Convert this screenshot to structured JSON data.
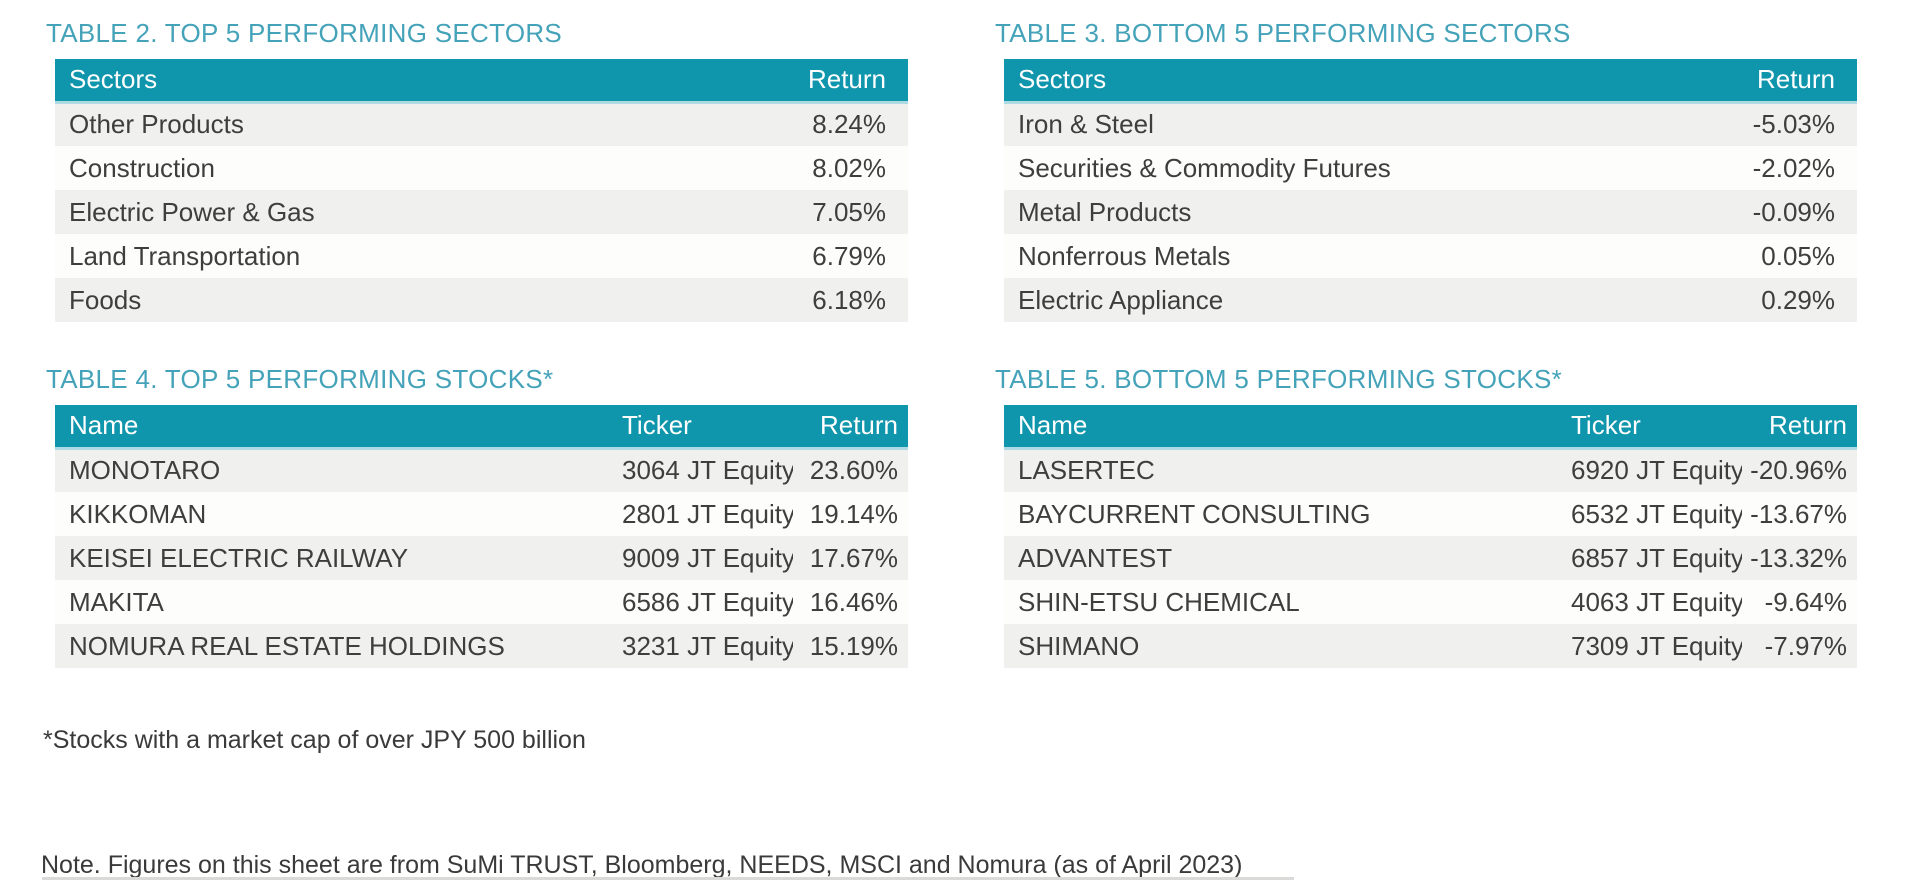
{
  "colors": {
    "header_bar_teal": "#0F95AC",
    "title_teal": "#44A2B9",
    "body_text": "#3E3E3E",
    "row_alt_gray": "#F0F0EE",
    "row_base_white": "#FDFDFC",
    "divider_gray": "#DADAD9"
  },
  "tables": {
    "sectors_top": {
      "title": "TABLE 2. TOP 5 PERFORMING SECTORS",
      "columns": [
        "Sectors",
        "Return"
      ],
      "rows": [
        {
          "sector": "Other Products",
          "return": "8.24%"
        },
        {
          "sector": "Construction",
          "return": "8.02%"
        },
        {
          "sector": "Electric Power & Gas",
          "return": "7.05%"
        },
        {
          "sector": "Land Transportation",
          "return": "6.79%"
        },
        {
          "sector": "Foods",
          "return": "6.18%"
        }
      ]
    },
    "sectors_bottom": {
      "title": "TABLE 3. BOTTOM 5 PERFORMING SECTORS",
      "columns": [
        "Sectors",
        "Return"
      ],
      "rows": [
        {
          "sector": "Iron & Steel",
          "return": "-5.03%"
        },
        {
          "sector": "Securities & Commodity Futures",
          "return": "-2.02%"
        },
        {
          "sector": "Metal Products",
          "return": "-0.09%"
        },
        {
          "sector": "Nonferrous Metals",
          "return": "0.05%"
        },
        {
          "sector": "Electric Appliance",
          "return": "0.29%"
        }
      ]
    },
    "stocks_top": {
      "title": "TABLE 4. TOP 5 PERFORMING STOCKS*",
      "columns": [
        "Name",
        "Ticker",
        "Return"
      ],
      "rows": [
        {
          "name": "MONOTARO",
          "ticker": "3064 JT Equity",
          "return": "23.60%"
        },
        {
          "name": "KIKKOMAN",
          "ticker": "2801 JT Equity",
          "return": "19.14%"
        },
        {
          "name": "KEISEI ELECTRIC RAILWAY",
          "ticker": "9009 JT Equity",
          "return": "17.67%"
        },
        {
          "name": "MAKITA",
          "ticker": "6586 JT Equity",
          "return": "16.46%"
        },
        {
          "name": "NOMURA REAL ESTATE HOLDINGS",
          "ticker": "3231 JT Equity",
          "return": "15.19%"
        }
      ]
    },
    "stocks_bottom": {
      "title": "TABLE 5. BOTTOM 5 PERFORMING STOCKS*",
      "columns": [
        "Name",
        "Ticker",
        "Return"
      ],
      "rows": [
        {
          "name": "LASERTEC",
          "ticker": "6920 JT Equity",
          "return": "-20.96%"
        },
        {
          "name": "BAYCURRENT CONSULTING",
          "ticker": "6532 JT Equity",
          "return": "-13.67%"
        },
        {
          "name": "ADVANTEST",
          "ticker": "6857 JT Equity",
          "return": "-13.32%"
        },
        {
          "name": "SHIN-ETSU CHEMICAL",
          "ticker": "4063 JT Equity",
          "return": "-9.64%"
        },
        {
          "name": "SHIMANO",
          "ticker": "7309 JT Equity",
          "return": "-7.97%"
        }
      ]
    }
  },
  "footnotes": {
    "market_cap": "*Stocks with a market cap of over JPY 500 billion",
    "source": "Note. Figures on this sheet are from SuMi TRUST, Bloomberg, NEEDS, MSCI and Nomura (as of April 2023)"
  }
}
